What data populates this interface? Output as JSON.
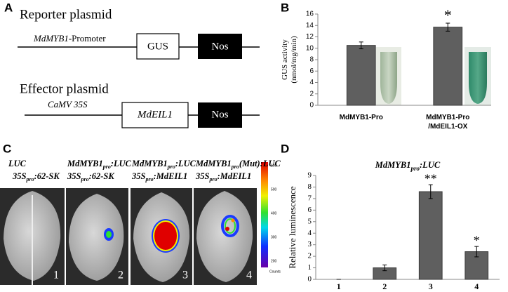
{
  "panel_labels": [
    "A",
    "B",
    "C",
    "D"
  ],
  "diagram": {
    "reporter": {
      "title": "Reporter plasmid",
      "promoter": [
        "MdMYB1",
        "-Promoter"
      ],
      "gene": "GUS",
      "terminator": "Nos"
    },
    "effector": {
      "title": "Effector plasmid",
      "promoter": "CaMV 35S",
      "gene": "MdEIL1",
      "terminator": "Nos"
    }
  },
  "imaging": {
    "samples": [
      {
        "label": [
          [
            "LUC"
          ],
          [
            "35S",
            "pro",
            ":62-SK"
          ]
        ],
        "number": "1"
      },
      {
        "label": [
          [
            "MdMYB1",
            "pro",
            ":LUC"
          ],
          [
            "35S",
            "pro",
            ":62-SK"
          ]
        ],
        "number": "2"
      },
      {
        "label": [
          [
            "MdMYB1",
            "pro",
            ":LUC"
          ],
          [
            "35S",
            "pro",
            ":MdEIL1"
          ]
        ],
        "number": "3"
      },
      {
        "label": [
          [
            "MdMYB1",
            "pro",
            "(Mut):LUC"
          ],
          [
            "35S",
            "pro",
            ":MdEIL1"
          ]
        ],
        "number": "4"
      }
    ],
    "colorbar": {
      "ticks": [
        600,
        500,
        400,
        300,
        200
      ],
      "unit": "Counts"
    }
  },
  "chart_data": [
    {
      "type": "bar",
      "categories": [
        [
          "MdMYB1-Pro"
        ],
        [
          "MdMYB1-Pro",
          "/MdEIL1-OX"
        ]
      ],
      "values": [
        10.5,
        13.7
      ],
      "errors": [
        0.6,
        0.7
      ],
      "significance": [
        null,
        "*"
      ],
      "y_label": [
        "GUS activity",
        "(nmol/mg/min)"
      ],
      "color": "#5f5f5f",
      "ylim": [
        0,
        16
      ],
      "yticks": [
        0,
        2,
        4,
        6,
        8,
        10,
        12,
        14,
        16
      ]
    },
    {
      "type": "bar",
      "title": [
        "MdMYB1",
        "pro",
        ":LUC"
      ],
      "categories": [
        [
          "1"
        ],
        [
          "2"
        ],
        [
          "3"
        ],
        [
          "4"
        ]
      ],
      "values": [
        0,
        1.0,
        7.6,
        2.4
      ],
      "errors": [
        0,
        0.25,
        0.6,
        0.45
      ],
      "significance": [
        null,
        null,
        "**",
        "*"
      ],
      "y_label": [
        "Relative luminescence"
      ],
      "color": "#5f5f5f",
      "ylim": [
        0,
        9
      ],
      "yticks": [
        0,
        1,
        2,
        3,
        4,
        5,
        6,
        7,
        8,
        9
      ]
    }
  ]
}
